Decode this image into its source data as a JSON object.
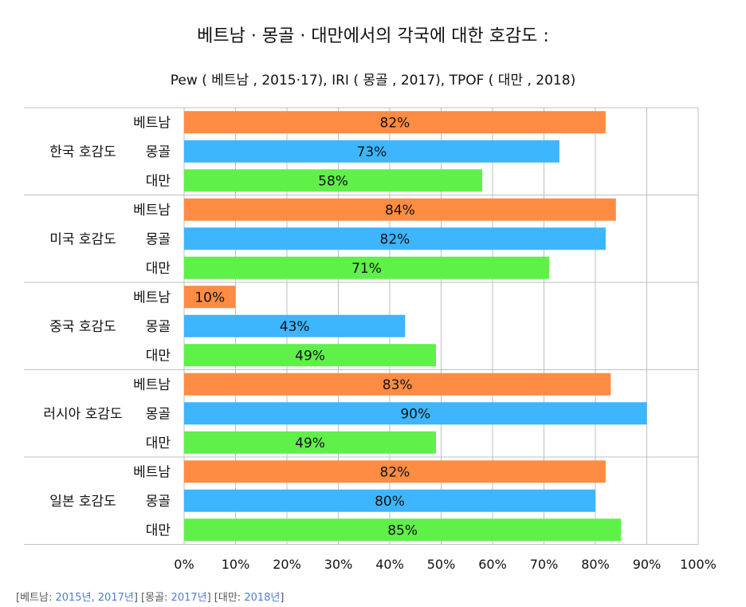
{
  "chart_data": {
    "type": "bar",
    "orientation": "horizontal",
    "title": "베트남 · 몽골 · 대만에서의 각국에 대한 호감도 :",
    "subtitle": "Pew ( 베트남 , 2015·17), IRI ( 몽골 , 2017), TPOF ( 대만 , 2018)",
    "xlim": [
      0,
      100
    ],
    "x_ticks": [
      "0%",
      "10%",
      "20%",
      "30%",
      "40%",
      "50%",
      "60%",
      "70%",
      "80%",
      "90%",
      "100%"
    ],
    "grid": true,
    "legend": "none",
    "colors": {
      "베트남": "#ff8c42",
      "몽골": "#3db5ff",
      "대만": "#5ff04a"
    },
    "groups": [
      {
        "label": "한국 호감도",
        "bars": [
          {
            "country": "베트남",
            "value": 82,
            "label": "82%"
          },
          {
            "country": "몽골",
            "value": 73,
            "label": "73%"
          },
          {
            "country": "대만",
            "value": 58,
            "label": "58%"
          }
        ]
      },
      {
        "label": "미국 호감도",
        "bars": [
          {
            "country": "베트남",
            "value": 84,
            "label": "84%"
          },
          {
            "country": "몽골",
            "value": 82,
            "label": "82%"
          },
          {
            "country": "대만",
            "value": 71,
            "label": "71%"
          }
        ]
      },
      {
        "label": "중국 호감도",
        "bars": [
          {
            "country": "베트남",
            "value": 10,
            "label": "10%"
          },
          {
            "country": "몽골",
            "value": 43,
            "label": "43%"
          },
          {
            "country": "대만",
            "value": 49,
            "label": "49%"
          }
        ]
      },
      {
        "label": "러시아 호감도",
        "bars": [
          {
            "country": "베트남",
            "value": 83,
            "label": "83%"
          },
          {
            "country": "몽골",
            "value": 90,
            "label": "90%"
          },
          {
            "country": "대만",
            "value": 49,
            "label": "49%"
          }
        ]
      },
      {
        "label": "일본 호감도",
        "bars": [
          {
            "country": "베트남",
            "value": 82,
            "label": "82%"
          },
          {
            "country": "몽골",
            "value": 80,
            "label": "80%"
          },
          {
            "country": "대만",
            "value": 85,
            "label": "85%"
          }
        ]
      }
    ]
  },
  "footnote": {
    "vn_prefix": "[베트남: ",
    "vn_links": "2015년, 2017년",
    "vn_suffix": "]",
    "mn_prefix": " [몽골: ",
    "mn_links": "2017년",
    "mn_suffix": "]",
    "tw_prefix": " [대만: ",
    "tw_links": "2018년",
    "tw_suffix": "]"
  }
}
